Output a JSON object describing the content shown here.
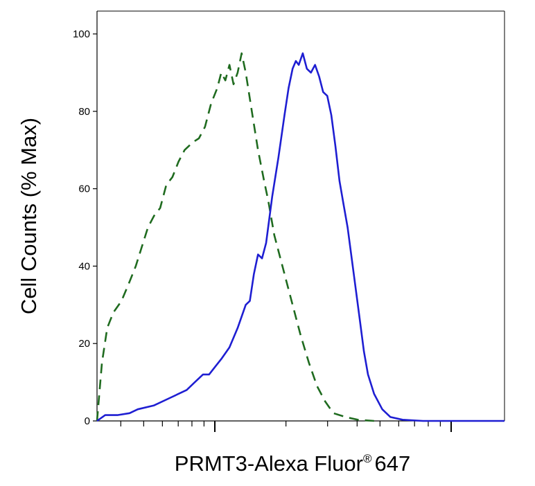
{
  "chart_data": {
    "type": "line",
    "xlabel": "PRMT3-Alexa Fluor",
    "xlabel_mark": "®",
    "xlabel_suffix": "647",
    "ylabel": "Cell Counts (% Max)",
    "y_ticks": [
      "0",
      "20",
      "40",
      "60",
      "80",
      "100"
    ],
    "ylim": [
      0,
      100
    ],
    "x_scale": "log",
    "x_tick_labels": [],
    "grid": false,
    "legend": "none",
    "series": [
      {
        "style": "dashed",
        "color": "#1f6b1f",
        "points": [
          [
            0.0,
            0
          ],
          [
            1.2,
            15
          ],
          [
            2.5,
            24
          ],
          [
            4.0,
            28
          ],
          [
            6.0,
            31
          ],
          [
            8.0,
            36
          ],
          [
            9.5,
            40
          ],
          [
            11.0,
            45
          ],
          [
            12.5,
            50
          ],
          [
            14.0,
            53
          ],
          [
            15.5,
            55
          ],
          [
            17.0,
            61
          ],
          [
            18.5,
            63
          ],
          [
            20.0,
            67
          ],
          [
            21.5,
            70
          ],
          [
            23.5,
            72
          ],
          [
            25.0,
            73
          ],
          [
            26.5,
            76
          ],
          [
            28.0,
            82
          ],
          [
            29.5,
            86
          ],
          [
            30.5,
            90
          ],
          [
            31.5,
            88
          ],
          [
            32.5,
            92
          ],
          [
            33.5,
            87
          ],
          [
            34.5,
            90
          ],
          [
            35.5,
            95
          ],
          [
            36.5,
            90
          ],
          [
            38.0,
            80
          ],
          [
            39.5,
            70
          ],
          [
            41.0,
            62
          ],
          [
            42.0,
            57
          ],
          [
            43.5,
            48
          ],
          [
            45.0,
            42
          ],
          [
            46.5,
            36
          ],
          [
            48.0,
            30
          ],
          [
            50.0,
            22
          ],
          [
            52.0,
            15
          ],
          [
            54.0,
            9
          ],
          [
            56.0,
            5
          ],
          [
            58.0,
            2
          ],
          [
            61.0,
            1
          ],
          [
            64.0,
            0.3
          ],
          [
            68.0,
            0
          ]
        ]
      },
      {
        "style": "solid",
        "color": "#1e1ed2",
        "points": [
          [
            0.0,
            0
          ],
          [
            2.0,
            1.5
          ],
          [
            5.0,
            1.5
          ],
          [
            8.0,
            2
          ],
          [
            10.0,
            3
          ],
          [
            14.0,
            4
          ],
          [
            18.0,
            6
          ],
          [
            22.0,
            8
          ],
          [
            24.0,
            10
          ],
          [
            26.0,
            12
          ],
          [
            27.5,
            12
          ],
          [
            29.0,
            14
          ],
          [
            30.5,
            16
          ],
          [
            32.5,
            19
          ],
          [
            34.5,
            24
          ],
          [
            36.5,
            30
          ],
          [
            37.5,
            31
          ],
          [
            38.5,
            38
          ],
          [
            39.5,
            43
          ],
          [
            40.5,
            42
          ],
          [
            41.5,
            46
          ],
          [
            43.0,
            58
          ],
          [
            44.5,
            68
          ],
          [
            46.0,
            79
          ],
          [
            47.0,
            86
          ],
          [
            48.0,
            91
          ],
          [
            48.8,
            93
          ],
          [
            49.5,
            92
          ],
          [
            50.5,
            95
          ],
          [
            51.5,
            91
          ],
          [
            52.5,
            90
          ],
          [
            53.5,
            92
          ],
          [
            54.5,
            89
          ],
          [
            55.5,
            85
          ],
          [
            56.5,
            84
          ],
          [
            57.5,
            79
          ],
          [
            58.5,
            71
          ],
          [
            59.5,
            62
          ],
          [
            60.5,
            56
          ],
          [
            61.5,
            50
          ],
          [
            62.5,
            42
          ],
          [
            63.5,
            34
          ],
          [
            64.5,
            26
          ],
          [
            65.5,
            18
          ],
          [
            66.5,
            12
          ],
          [
            68.0,
            7
          ],
          [
            70.0,
            3
          ],
          [
            72.0,
            1
          ],
          [
            75.0,
            0.3
          ],
          [
            80.0,
            0
          ],
          [
            100.0,
            0
          ]
        ]
      }
    ]
  }
}
